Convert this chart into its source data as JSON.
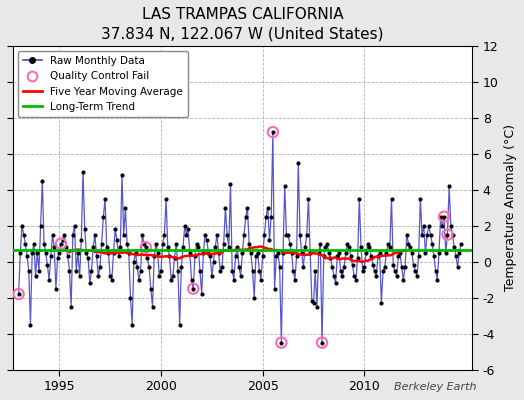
{
  "title": "LAS TRAMPAS CALIFORNIA",
  "subtitle": "37.834 N, 122.067 W (United States)",
  "ylabel": "Temperature Anomaly (°C)",
  "watermark": "Berkeley Earth",
  "ylim": [
    -6,
    12
  ],
  "yticks": [
    -6,
    -4,
    -2,
    0,
    2,
    4,
    6,
    8,
    10,
    12
  ],
  "xlim_start": 1992.7,
  "xlim_end": 2015.3,
  "xticks": [
    1995,
    2000,
    2005,
    2010
  ],
  "fig_bg_color": "#e8e8e8",
  "plot_bg_color": "#ffffff",
  "line_color": "#4444cc",
  "marker_color": "#000000",
  "marker_size": 3,
  "qc_fail_color": "#ff69b4",
  "moving_avg_color": "#ff0000",
  "trend_color": "#00bb00",
  "trend_value": 0.62,
  "raw_data": [
    [
      1993.0,
      -1.8
    ],
    [
      1993.083,
      0.5
    ],
    [
      1993.167,
      2.0
    ],
    [
      1993.25,
      1.5
    ],
    [
      1993.333,
      1.0
    ],
    [
      1993.417,
      0.3
    ],
    [
      1993.5,
      -0.5
    ],
    [
      1993.583,
      -3.5
    ],
    [
      1993.667,
      0.5
    ],
    [
      1993.75,
      1.0
    ],
    [
      1993.833,
      -0.8
    ],
    [
      1993.917,
      0.5
    ],
    [
      1994.0,
      -0.5
    ],
    [
      1994.083,
      2.0
    ],
    [
      1994.167,
      4.5
    ],
    [
      1994.25,
      1.0
    ],
    [
      1994.333,
      0.5
    ],
    [
      1994.417,
      -0.2
    ],
    [
      1994.5,
      -1.0
    ],
    [
      1994.583,
      0.3
    ],
    [
      1994.667,
      1.5
    ],
    [
      1994.75,
      0.8
    ],
    [
      1994.833,
      -1.5
    ],
    [
      1994.917,
      0.2
    ],
    [
      1995.0,
      0.5
    ],
    [
      1995.083,
      1.0
    ],
    [
      1995.167,
      1.2
    ],
    [
      1995.25,
      1.5
    ],
    [
      1995.333,
      0.8
    ],
    [
      1995.417,
      0.3
    ],
    [
      1995.5,
      -0.5
    ],
    [
      1995.583,
      -2.5
    ],
    [
      1995.667,
      1.5
    ],
    [
      1995.75,
      2.0
    ],
    [
      1995.833,
      -0.5
    ],
    [
      1995.917,
      0.5
    ],
    [
      1996.0,
      -0.8
    ],
    [
      1996.083,
      1.2
    ],
    [
      1996.167,
      5.0
    ],
    [
      1996.25,
      1.8
    ],
    [
      1996.333,
      0.5
    ],
    [
      1996.417,
      0.2
    ],
    [
      1996.5,
      -1.2
    ],
    [
      1996.583,
      -0.5
    ],
    [
      1996.667,
      0.8
    ],
    [
      1996.75,
      1.5
    ],
    [
      1996.833,
      0.3
    ],
    [
      1996.917,
      -0.8
    ],
    [
      1997.0,
      -0.3
    ],
    [
      1997.083,
      1.0
    ],
    [
      1997.167,
      2.5
    ],
    [
      1997.25,
      3.5
    ],
    [
      1997.333,
      0.8
    ],
    [
      1997.417,
      0.5
    ],
    [
      1997.5,
      -0.8
    ],
    [
      1997.583,
      -1.0
    ],
    [
      1997.667,
      0.5
    ],
    [
      1997.75,
      1.8
    ],
    [
      1997.833,
      1.2
    ],
    [
      1997.917,
      0.3
    ],
    [
      1998.0,
      0.8
    ],
    [
      1998.083,
      4.8
    ],
    [
      1998.167,
      1.5
    ],
    [
      1998.25,
      3.0
    ],
    [
      1998.333,
      1.0
    ],
    [
      1998.417,
      0.5
    ],
    [
      1998.5,
      -2.0
    ],
    [
      1998.583,
      -3.5
    ],
    [
      1998.667,
      0.0
    ],
    [
      1998.75,
      0.5
    ],
    [
      1998.833,
      -0.3
    ],
    [
      1998.917,
      -1.0
    ],
    [
      1999.0,
      -0.5
    ],
    [
      1999.083,
      1.5
    ],
    [
      1999.167,
      1.0
    ],
    [
      1999.25,
      0.8
    ],
    [
      1999.333,
      0.2
    ],
    [
      1999.417,
      -0.3
    ],
    [
      1999.5,
      -1.5
    ],
    [
      1999.583,
      -2.5
    ],
    [
      1999.667,
      0.3
    ],
    [
      1999.75,
      1.0
    ],
    [
      1999.833,
      0.5
    ],
    [
      1999.917,
      -0.8
    ],
    [
      2000.0,
      -0.5
    ],
    [
      2000.083,
      1.0
    ],
    [
      2000.167,
      1.5
    ],
    [
      2000.25,
      3.5
    ],
    [
      2000.333,
      0.8
    ],
    [
      2000.417,
      0.3
    ],
    [
      2000.5,
      -1.0
    ],
    [
      2000.583,
      -0.8
    ],
    [
      2000.667,
      0.2
    ],
    [
      2000.75,
      1.0
    ],
    [
      2000.833,
      -0.5
    ],
    [
      2000.917,
      -3.5
    ],
    [
      2001.0,
      -0.3
    ],
    [
      2001.083,
      0.8
    ],
    [
      2001.167,
      2.0
    ],
    [
      2001.25,
      1.5
    ],
    [
      2001.333,
      1.8
    ],
    [
      2001.417,
      0.5
    ],
    [
      2001.5,
      -1.0
    ],
    [
      2001.583,
      -1.5
    ],
    [
      2001.667,
      0.3
    ],
    [
      2001.75,
      1.0
    ],
    [
      2001.833,
      0.8
    ],
    [
      2001.917,
      -0.5
    ],
    [
      2002.0,
      -1.8
    ],
    [
      2002.083,
      0.5
    ],
    [
      2002.167,
      1.5
    ],
    [
      2002.25,
      1.2
    ],
    [
      2002.333,
      0.5
    ],
    [
      2002.417,
      0.3
    ],
    [
      2002.5,
      -0.8
    ],
    [
      2002.583,
      0.0
    ],
    [
      2002.667,
      0.8
    ],
    [
      2002.75,
      1.5
    ],
    [
      2002.833,
      0.5
    ],
    [
      2002.917,
      -0.5
    ],
    [
      2003.0,
      -0.3
    ],
    [
      2003.083,
      1.0
    ],
    [
      2003.167,
      3.0
    ],
    [
      2003.25,
      1.5
    ],
    [
      2003.333,
      0.8
    ],
    [
      2003.417,
      4.3
    ],
    [
      2003.5,
      -0.5
    ],
    [
      2003.583,
      -1.0
    ],
    [
      2003.667,
      0.3
    ],
    [
      2003.75,
      0.8
    ],
    [
      2003.833,
      -0.3
    ],
    [
      2003.917,
      -0.8
    ],
    [
      2004.0,
      0.5
    ],
    [
      2004.083,
      1.5
    ],
    [
      2004.167,
      2.5
    ],
    [
      2004.25,
      3.0
    ],
    [
      2004.333,
      1.0
    ],
    [
      2004.417,
      0.5
    ],
    [
      2004.5,
      -0.5
    ],
    [
      2004.583,
      -2.0
    ],
    [
      2004.667,
      0.3
    ],
    [
      2004.75,
      0.5
    ],
    [
      2004.833,
      -0.5
    ],
    [
      2004.917,
      -1.0
    ],
    [
      2005.0,
      0.3
    ],
    [
      2005.083,
      1.5
    ],
    [
      2005.167,
      2.5
    ],
    [
      2005.25,
      3.0
    ],
    [
      2005.333,
      1.2
    ],
    [
      2005.417,
      2.5
    ],
    [
      2005.5,
      7.2
    ],
    [
      2005.583,
      -1.5
    ],
    [
      2005.667,
      0.3
    ],
    [
      2005.75,
      0.5
    ],
    [
      2005.833,
      -0.3
    ],
    [
      2005.917,
      -4.5
    ],
    [
      2006.0,
      0.5
    ],
    [
      2006.083,
      4.2
    ],
    [
      2006.167,
      1.5
    ],
    [
      2006.25,
      1.5
    ],
    [
      2006.333,
      1.0
    ],
    [
      2006.417,
      0.5
    ],
    [
      2006.5,
      -0.5
    ],
    [
      2006.583,
      -1.0
    ],
    [
      2006.667,
      0.3
    ],
    [
      2006.75,
      5.5
    ],
    [
      2006.833,
      1.5
    ],
    [
      2006.917,
      0.5
    ],
    [
      2007.0,
      -0.3
    ],
    [
      2007.083,
      0.8
    ],
    [
      2007.167,
      1.5
    ],
    [
      2007.25,
      3.5
    ],
    [
      2007.333,
      0.5
    ],
    [
      2007.417,
      -2.2
    ],
    [
      2007.5,
      -2.3
    ],
    [
      2007.583,
      -0.5
    ],
    [
      2007.667,
      -2.5
    ],
    [
      2007.75,
      0.5
    ],
    [
      2007.833,
      1.0
    ],
    [
      2007.917,
      -4.5
    ],
    [
      2008.0,
      0.3
    ],
    [
      2008.083,
      0.8
    ],
    [
      2008.167,
      1.0
    ],
    [
      2008.25,
      0.5
    ],
    [
      2008.333,
      0.2
    ],
    [
      2008.417,
      -0.3
    ],
    [
      2008.5,
      -0.8
    ],
    [
      2008.583,
      -1.2
    ],
    [
      2008.667,
      0.3
    ],
    [
      2008.75,
      0.5
    ],
    [
      2008.833,
      -0.5
    ],
    [
      2008.917,
      -0.8
    ],
    [
      2009.0,
      -0.3
    ],
    [
      2009.083,
      0.5
    ],
    [
      2009.167,
      1.0
    ],
    [
      2009.25,
      0.8
    ],
    [
      2009.333,
      0.3
    ],
    [
      2009.417,
      -0.2
    ],
    [
      2009.5,
      -0.8
    ],
    [
      2009.583,
      -1.0
    ],
    [
      2009.667,
      0.2
    ],
    [
      2009.75,
      3.5
    ],
    [
      2009.833,
      0.8
    ],
    [
      2009.917,
      -0.5
    ],
    [
      2010.0,
      -0.3
    ],
    [
      2010.083,
      0.5
    ],
    [
      2010.167,
      1.0
    ],
    [
      2010.25,
      0.8
    ],
    [
      2010.333,
      0.3
    ],
    [
      2010.417,
      -0.2
    ],
    [
      2010.5,
      -0.5
    ],
    [
      2010.583,
      -0.8
    ],
    [
      2010.667,
      0.3
    ],
    [
      2010.75,
      0.5
    ],
    [
      2010.833,
      -2.3
    ],
    [
      2010.917,
      -0.5
    ],
    [
      2011.0,
      -0.3
    ],
    [
      2011.083,
      0.5
    ],
    [
      2011.167,
      1.0
    ],
    [
      2011.25,
      0.8
    ],
    [
      2011.333,
      3.5
    ],
    [
      2011.417,
      -0.2
    ],
    [
      2011.5,
      -0.5
    ],
    [
      2011.583,
      -0.8
    ],
    [
      2011.667,
      0.3
    ],
    [
      2011.75,
      0.5
    ],
    [
      2011.833,
      -0.3
    ],
    [
      2011.917,
      -1.0
    ],
    [
      2012.0,
      -0.3
    ],
    [
      2012.083,
      1.5
    ],
    [
      2012.167,
      1.0
    ],
    [
      2012.25,
      0.8
    ],
    [
      2012.333,
      0.5
    ],
    [
      2012.417,
      -0.2
    ],
    [
      2012.5,
      -0.5
    ],
    [
      2012.583,
      -0.8
    ],
    [
      2012.667,
      0.3
    ],
    [
      2012.75,
      3.5
    ],
    [
      2012.833,
      1.5
    ],
    [
      2012.917,
      2.0
    ],
    [
      2013.0,
      0.5
    ],
    [
      2013.083,
      1.5
    ],
    [
      2013.167,
      2.0
    ],
    [
      2013.25,
      1.5
    ],
    [
      2013.333,
      1.0
    ],
    [
      2013.417,
      0.3
    ],
    [
      2013.5,
      -0.5
    ],
    [
      2013.583,
      -1.0
    ],
    [
      2013.667,
      0.5
    ],
    [
      2013.75,
      2.5
    ],
    [
      2013.833,
      2.0
    ],
    [
      2013.917,
      2.5
    ],
    [
      2014.0,
      0.5
    ],
    [
      2014.083,
      1.5
    ],
    [
      2014.167,
      4.2
    ],
    [
      2014.25,
      2.0
    ],
    [
      2014.333,
      1.5
    ],
    [
      2014.417,
      0.8
    ],
    [
      2014.5,
      0.3
    ],
    [
      2014.583,
      -0.3
    ],
    [
      2014.667,
      0.5
    ],
    [
      2014.75,
      1.0
    ]
  ],
  "qc_fail_points": [
    [
      1993.0,
      -1.8
    ],
    [
      1995.083,
      1.0
    ],
    [
      1999.25,
      0.8
    ],
    [
      2001.583,
      -1.5
    ],
    [
      2005.5,
      7.2
    ],
    [
      2005.917,
      -4.5
    ],
    [
      2007.917,
      -4.5
    ],
    [
      2013.917,
      2.5
    ],
    [
      2014.083,
      1.5
    ]
  ]
}
